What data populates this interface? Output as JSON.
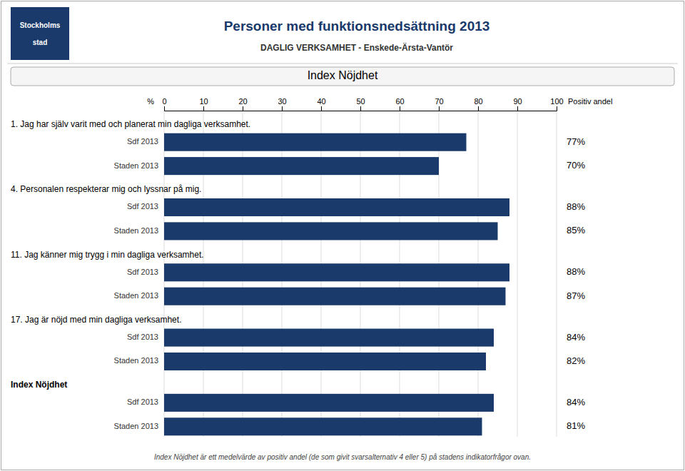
{
  "chart_data": {
    "type": "bar",
    "orientation": "horizontal",
    "title": "Personer med funktionsnedsättning 2013",
    "subtitle": "DAGLIG VERKSAMHET - Enskede-Ärsta-Vantör",
    "logo": [
      "Stockholms",
      "stad"
    ],
    "panel_title": "Index Nöjdhet",
    "note": "Index Nöjdhet är ett medelvärde av positiv andel (de som givit svarsalternativ 4 eller 5) på stadens indikatorfrågor ovan.",
    "xlabel": "Positiv andel",
    "xunit": "%",
    "color": "#1a3a6b",
    "xlim": [
      0,
      100
    ],
    "xticks": [
      0,
      10,
      20,
      30,
      40,
      50,
      60,
      70,
      80,
      90,
      100
    ],
    "grid": true,
    "data_labels": true,
    "groups": [
      {
        "heading": "1. Jag har själv varit med och planerat min dagliga verksamhet.",
        "categories": [
          "Sdf 2013",
          "Staden 2013"
        ],
        "values": [
          77,
          70
        ],
        "value_labels": [
          "77%",
          "70%"
        ]
      },
      {
        "heading": "4. Personalen respekterar mig och lyssnar på mig.",
        "categories": [
          "Sdf 2013",
          "Staden 2013"
        ],
        "values": [
          88,
          85
        ],
        "value_labels": [
          "88%",
          "85%"
        ]
      },
      {
        "heading": "11. Jag känner mig trygg i min dagliga verksamhet.",
        "categories": [
          "Sdf 2013",
          "Staden 2013"
        ],
        "values": [
          88,
          87
        ],
        "value_labels": [
          "88%",
          "87%"
        ]
      },
      {
        "heading": "17.  Jag är nöjd med min dagliga verksamhet.",
        "categories": [
          "Sdf 2013",
          "Staden 2013"
        ],
        "values": [
          84,
          82
        ],
        "value_labels": [
          "84%",
          "82%"
        ]
      },
      {
        "heading": "Index Nöjdhet",
        "categories": [
          "Sdf 2013",
          "Staden 2013"
        ],
        "values": [
          84,
          81
        ],
        "value_labels": [
          "84%",
          "81%"
        ]
      }
    ]
  }
}
